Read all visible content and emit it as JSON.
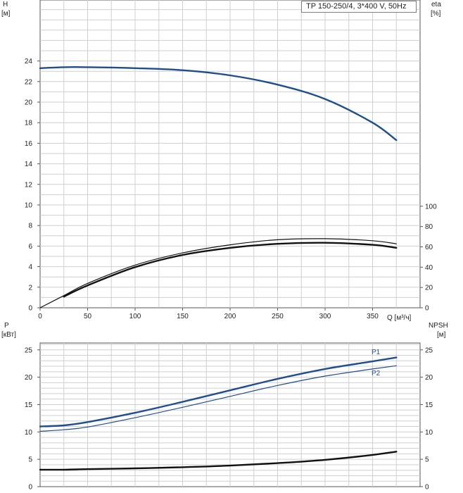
{
  "legend": "TP 150-250/4, 3*400 V, 50Hz",
  "colors": {
    "blue": "#1f4e8c",
    "black": "#111111",
    "grid": "#cfcfcf",
    "axis": "#555555"
  },
  "chart_data": [
    {
      "type": "line",
      "panel": "top",
      "left_axis": {
        "label": "H",
        "unit": "[м]",
        "ylim": [
          0,
          24
        ],
        "ticks": [
          0,
          2,
          4,
          6,
          8,
          10,
          12,
          14,
          16,
          18,
          20,
          22,
          24
        ]
      },
      "right_axis": {
        "label": "eta",
        "unit": "[%]",
        "ylim": [
          0,
          100
        ],
        "ticks": [
          0,
          20,
          40,
          60,
          80,
          100
        ]
      },
      "x_axis": {
        "label": "Q [м³/ч]",
        "xlim": [
          0,
          400
        ],
        "ticks": [
          0,
          50,
          100,
          150,
          200,
          250,
          300,
          350
        ]
      },
      "grid": true,
      "series": [
        {
          "id": "H",
          "axis": "left",
          "color": "blue",
          "weight": "thick",
          "x": [
            0,
            25,
            50,
            100,
            150,
            200,
            250,
            300,
            350,
            375
          ],
          "y": [
            23.3,
            23.4,
            23.4,
            23.3,
            23.1,
            22.6,
            21.7,
            20.3,
            18.0,
            16.3
          ]
        },
        {
          "id": "eta_a",
          "axis": "right",
          "color": "black",
          "weight": "thin",
          "x": [
            0,
            25,
            50,
            100,
            150,
            200,
            250,
            300,
            350,
            375
          ],
          "y": [
            0,
            12,
            24,
            42,
            54,
            62,
            67,
            68,
            66,
            63
          ]
        },
        {
          "id": "eta_b",
          "axis": "right",
          "color": "black",
          "weight": "thick",
          "x": [
            25,
            50,
            100,
            150,
            200,
            250,
            300,
            350,
            375
          ],
          "y": [
            11,
            22,
            40,
            52,
            59,
            63,
            64,
            62,
            59
          ]
        }
      ]
    },
    {
      "type": "line",
      "panel": "bottom",
      "left_axis": {
        "label": "P",
        "unit": "[кВт]",
        "ylim": [
          0,
          28
        ],
        "ticks": [
          0,
          5,
          10,
          15,
          20,
          25
        ]
      },
      "right_axis": {
        "label": "NPSH",
        "unit": "[м]",
        "ylim": [
          0,
          28
        ],
        "ticks": [
          0,
          5,
          10,
          15,
          20,
          25
        ]
      },
      "x_axis": {
        "xlim": [
          0,
          400
        ]
      },
      "grid": true,
      "series": [
        {
          "id": "P1",
          "name": "P1",
          "axis": "left",
          "color": "blue",
          "weight": "thick",
          "x": [
            0,
            25,
            50,
            100,
            150,
            200,
            250,
            300,
            350,
            375
          ],
          "y": [
            11.0,
            11.2,
            11.8,
            13.5,
            15.5,
            17.6,
            19.7,
            21.5,
            22.9,
            23.6
          ]
        },
        {
          "id": "P2",
          "name": "P2",
          "axis": "left",
          "color": "blue",
          "weight": "thin",
          "x": [
            0,
            25,
            50,
            100,
            150,
            200,
            250,
            300,
            350,
            375
          ],
          "y": [
            10.1,
            10.4,
            10.9,
            12.6,
            14.5,
            16.5,
            18.5,
            20.2,
            21.5,
            22.1
          ]
        },
        {
          "id": "NPSH",
          "axis": "right",
          "color": "black",
          "weight": "thick",
          "x": [
            0,
            25,
            50,
            100,
            150,
            200,
            250,
            300,
            350,
            375
          ],
          "y": [
            3.1,
            3.1,
            3.2,
            3.35,
            3.55,
            3.85,
            4.3,
            4.9,
            5.8,
            6.4
          ]
        }
      ]
    }
  ]
}
